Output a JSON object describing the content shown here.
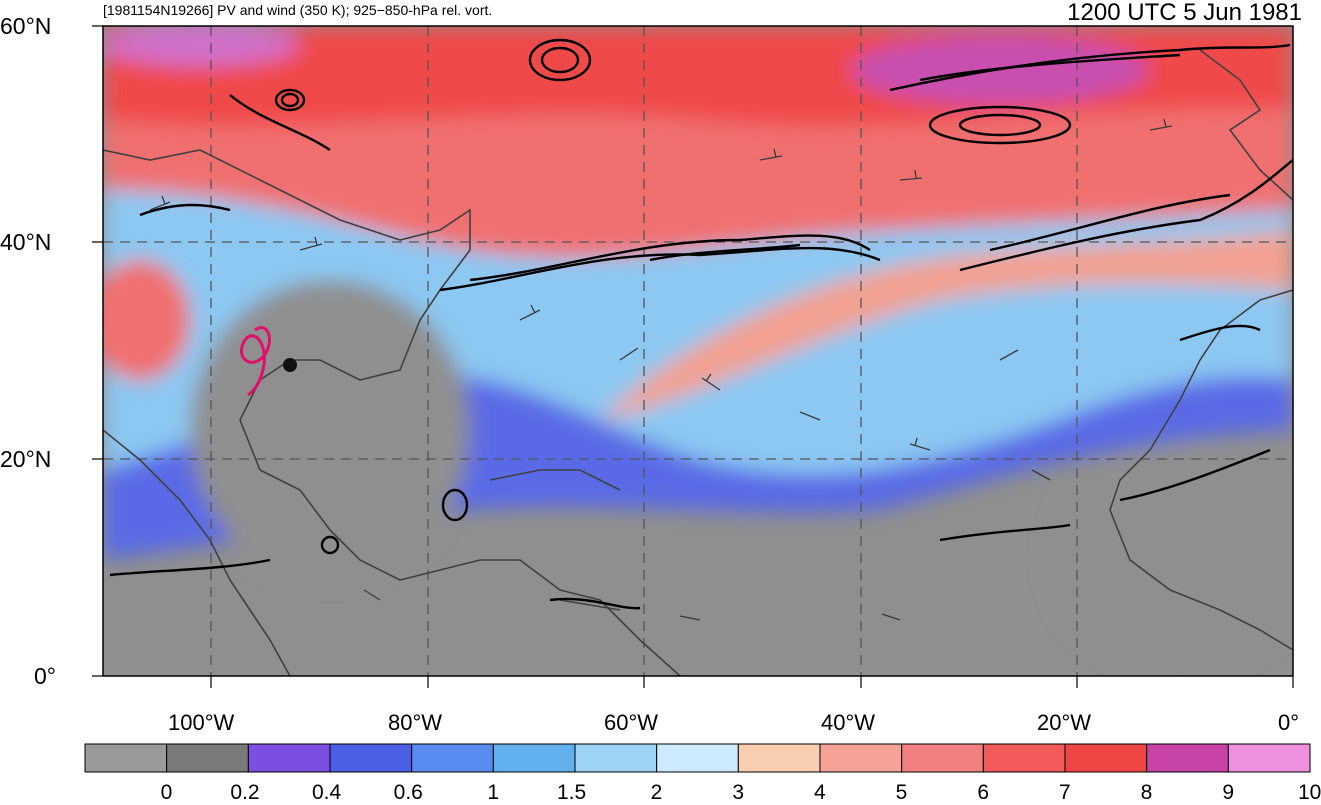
{
  "header": {
    "left_title": "[1981154N19266] PV and wind (350 K); 925−850-hPa rel. vort.",
    "right_title": "1200 UTC 5 Jun 1981"
  },
  "map": {
    "lat_labels": [
      "60°N",
      "40°N",
      "20°N",
      "0°"
    ],
    "lon_labels": [
      "100°W",
      "80°W",
      "60°W",
      "40°W",
      "20°W",
      "0°"
    ],
    "extent": {
      "lon_min": -110,
      "lon_max": 0,
      "lat_min": 0,
      "lat_max": 60
    }
  },
  "colorbar": {
    "labels": [
      "0",
      "0.2",
      "0.4",
      "0.6",
      "1",
      "1.5",
      "2",
      "3",
      "4",
      "5",
      "6",
      "7",
      "8",
      "9",
      "10"
    ],
    "colors": [
      "#9a9a9a",
      "#7a7a7a",
      "#7b4fe0",
      "#4a5fe6",
      "#5a8bf0",
      "#62b0ee",
      "#9fd3f5",
      "#cdeafc",
      "#f8cdb0",
      "#f5a397",
      "#f28080",
      "#f25a5a",
      "#f04545",
      "#c843a8",
      "#ee90dd"
    ]
  },
  "colors": {
    "contour_black": "#000000",
    "contour_magenta": "#e0106a",
    "coastline": "#404040",
    "grid": "#555555"
  }
}
